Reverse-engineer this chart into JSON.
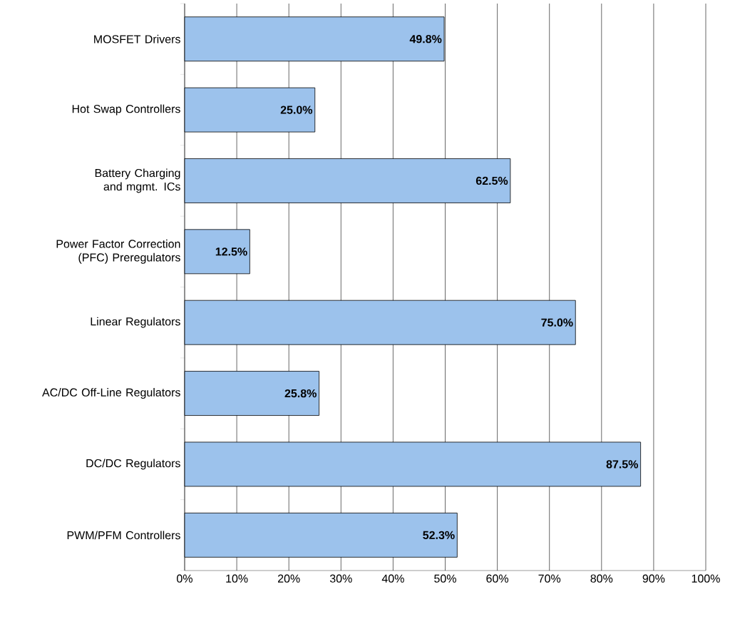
{
  "chart_data": {
    "type": "bar",
    "orientation": "horizontal",
    "categories": [
      "MOSFET Drivers",
      "Hot Swap Controllers",
      "Battery Charging and mgmt. ICs",
      "Power Factor Correction (PFC) Preregulators",
      "Linear Regulators",
      "AC/DC Off-Line Regulators",
      "DC/DC Regulators",
      "PWM/PFM Controllers"
    ],
    "values": [
      49.8,
      25.0,
      62.5,
      12.5,
      75.0,
      25.8,
      87.5,
      52.3
    ],
    "value_labels": [
      "49.8%",
      "25.0%",
      "62.5%",
      "12.5%",
      "75.0%",
      "25.8%",
      "87.5%",
      "52.3%"
    ],
    "color": "#9cc2ec",
    "xlim": [
      0,
      100
    ],
    "xticks": [
      {
        "value": 0,
        "label": "0%"
      },
      {
        "value": 10,
        "label": "10%"
      },
      {
        "value": 20,
        "label": "20%"
      },
      {
        "value": 30,
        "label": "30%"
      },
      {
        "value": 40,
        "label": "40%"
      },
      {
        "value": 50,
        "label": "50%"
      },
      {
        "value": 60,
        "label": "60%"
      },
      {
        "value": 70,
        "label": "70%"
      },
      {
        "value": 80,
        "label": "80%"
      },
      {
        "value": 90,
        "label": "90%"
      },
      {
        "value": 100,
        "label": "100%"
      }
    ],
    "grid": "x"
  }
}
